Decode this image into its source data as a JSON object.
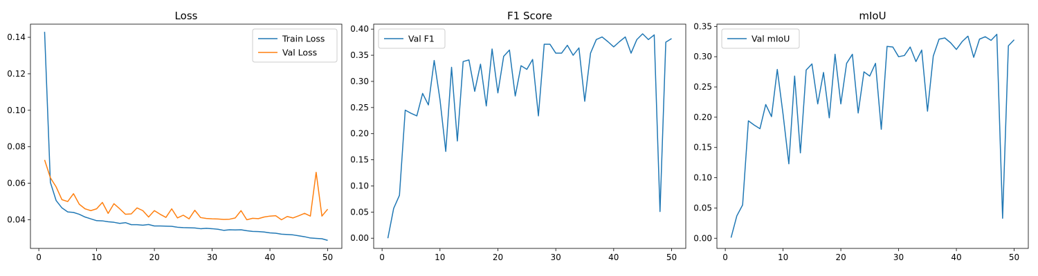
{
  "colors": {
    "blue": "#1f77b4",
    "orange": "#ff7f0e"
  },
  "chart_data": [
    {
      "type": "line",
      "title": "Loss",
      "xlim": [
        -1.45,
        52.45
      ],
      "ylim": [
        0.0243,
        0.1472
      ],
      "xticks": [
        0,
        10,
        20,
        30,
        40,
        50
      ],
      "yticks": [
        0.04,
        0.06,
        0.08,
        0.1,
        0.12,
        0.14
      ],
      "ytick_labels": [
        "0.04",
        "0.06",
        "0.08",
        "0.10",
        "0.12",
        "0.14"
      ],
      "legend": "top-right",
      "series": [
        {
          "name": "Train Loss",
          "color": "#1f77b4",
          "x": [
            1,
            2,
            3,
            4,
            5,
            6,
            7,
            8,
            9,
            10,
            11,
            12,
            13,
            14,
            15,
            16,
            17,
            18,
            19,
            20,
            21,
            22,
            23,
            24,
            25,
            26,
            27,
            28,
            29,
            30,
            31,
            32,
            33,
            34,
            35,
            36,
            37,
            38,
            39,
            40,
            41,
            42,
            43,
            44,
            45,
            46,
            47,
            48,
            49,
            50
          ],
          "values": [
            0.143,
            0.0605,
            0.0505,
            0.0465,
            0.0443,
            0.044,
            0.043,
            0.0415,
            0.0405,
            0.0395,
            0.0394,
            0.0389,
            0.0386,
            0.038,
            0.0384,
            0.0373,
            0.0373,
            0.037,
            0.0374,
            0.0366,
            0.0366,
            0.0365,
            0.0364,
            0.0359,
            0.0357,
            0.0356,
            0.0355,
            0.0351,
            0.0353,
            0.0351,
            0.0348,
            0.0342,
            0.0345,
            0.0344,
            0.0345,
            0.034,
            0.0336,
            0.0335,
            0.0333,
            0.0328,
            0.0326,
            0.0321,
            0.0319,
            0.0317,
            0.0312,
            0.0307,
            0.03,
            0.0298,
            0.0296,
            0.0287
          ]
        },
        {
          "name": "Val Loss",
          "color": "#ff7f0e",
          "x": [
            1,
            2,
            3,
            4,
            5,
            6,
            7,
            8,
            9,
            10,
            11,
            12,
            13,
            14,
            15,
            16,
            17,
            18,
            19,
            20,
            21,
            22,
            23,
            24,
            25,
            26,
            27,
            28,
            29,
            30,
            31,
            32,
            33,
            34,
            35,
            36,
            37,
            38,
            39,
            40,
            41,
            42,
            43,
            44,
            45,
            46,
            47,
            48,
            49,
            50
          ],
          "values": [
            0.0728,
            0.063,
            0.058,
            0.051,
            0.05,
            0.0543,
            0.0485,
            0.046,
            0.045,
            0.046,
            0.0495,
            0.0435,
            0.0488,
            0.046,
            0.043,
            0.0432,
            0.0465,
            0.045,
            0.0415,
            0.045,
            0.043,
            0.0413,
            0.046,
            0.041,
            0.0425,
            0.0405,
            0.0452,
            0.0412,
            0.0407,
            0.0405,
            0.0404,
            0.0402,
            0.0403,
            0.041,
            0.045,
            0.04,
            0.0408,
            0.0406,
            0.0415,
            0.042,
            0.0422,
            0.04,
            0.0418,
            0.041,
            0.0422,
            0.0435,
            0.042,
            0.066,
            0.042,
            0.0458
          ]
        }
      ]
    },
    {
      "type": "line",
      "title": "F1 Score",
      "xlim": [
        -1.45,
        52.45
      ],
      "ylim": [
        -0.0195,
        0.4095
      ],
      "xticks": [
        0,
        10,
        20,
        30,
        40,
        50
      ],
      "yticks": [
        0.0,
        0.05,
        0.1,
        0.15,
        0.2,
        0.25,
        0.3,
        0.35,
        0.4
      ],
      "ytick_labels": [
        "0.00",
        "0.05",
        "0.10",
        "0.15",
        "0.20",
        "0.25",
        "0.30",
        "0.35",
        "0.40"
      ],
      "legend": "top-left",
      "series": [
        {
          "name": "Val F1",
          "color": "#1f77b4",
          "x": [
            1,
            2,
            3,
            4,
            5,
            6,
            7,
            8,
            9,
            10,
            11,
            12,
            13,
            14,
            15,
            16,
            17,
            18,
            19,
            20,
            21,
            22,
            23,
            24,
            25,
            26,
            27,
            28,
            29,
            30,
            31,
            32,
            33,
            34,
            35,
            36,
            37,
            38,
            39,
            40,
            41,
            42,
            43,
            44,
            45,
            46,
            47,
            48,
            49,
            50
          ],
          "values": [
            0.0,
            0.057,
            0.082,
            0.245,
            0.239,
            0.234,
            0.277,
            0.255,
            0.34,
            0.265,
            0.166,
            0.327,
            0.186,
            0.338,
            0.341,
            0.281,
            0.333,
            0.253,
            0.362,
            0.278,
            0.348,
            0.36,
            0.272,
            0.33,
            0.323,
            0.342,
            0.234,
            0.371,
            0.371,
            0.354,
            0.354,
            0.369,
            0.35,
            0.364,
            0.262,
            0.354,
            0.38,
            0.385,
            0.376,
            0.366,
            0.376,
            0.385,
            0.354,
            0.38,
            0.391,
            0.38,
            0.389,
            0.051,
            0.375,
            0.382
          ]
        }
      ]
    },
    {
      "type": "line",
      "title": "mIoU",
      "xlim": [
        -1.45,
        52.45
      ],
      "ylim": [
        -0.0168,
        0.3538
      ],
      "xticks": [
        0,
        10,
        20,
        30,
        40,
        50
      ],
      "yticks": [
        0.0,
        0.05,
        0.1,
        0.15,
        0.2,
        0.25,
        0.3,
        0.35
      ],
      "ytick_labels": [
        "0.00",
        "0.05",
        "0.10",
        "0.15",
        "0.20",
        "0.25",
        "0.30",
        "0.35"
      ],
      "legend": "top-left",
      "series": [
        {
          "name": "Val mIoU",
          "color": "#1f77b4",
          "x": [
            1,
            2,
            3,
            4,
            5,
            6,
            7,
            8,
            9,
            10,
            11,
            12,
            13,
            14,
            15,
            16,
            17,
            18,
            19,
            20,
            21,
            22,
            23,
            24,
            25,
            26,
            27,
            28,
            29,
            30,
            31,
            32,
            33,
            34,
            35,
            36,
            37,
            38,
            39,
            40,
            41,
            42,
            43,
            44,
            45,
            46,
            47,
            48,
            49,
            50
          ],
          "values": [
            0.001,
            0.037,
            0.055,
            0.194,
            0.187,
            0.181,
            0.221,
            0.201,
            0.279,
            0.205,
            0.123,
            0.268,
            0.141,
            0.278,
            0.288,
            0.222,
            0.274,
            0.199,
            0.304,
            0.222,
            0.289,
            0.304,
            0.207,
            0.275,
            0.268,
            0.289,
            0.18,
            0.317,
            0.316,
            0.3,
            0.302,
            0.316,
            0.292,
            0.311,
            0.21,
            0.301,
            0.329,
            0.331,
            0.323,
            0.312,
            0.325,
            0.334,
            0.299,
            0.329,
            0.333,
            0.327,
            0.337,
            0.033,
            0.318,
            0.328
          ]
        }
      ]
    }
  ]
}
